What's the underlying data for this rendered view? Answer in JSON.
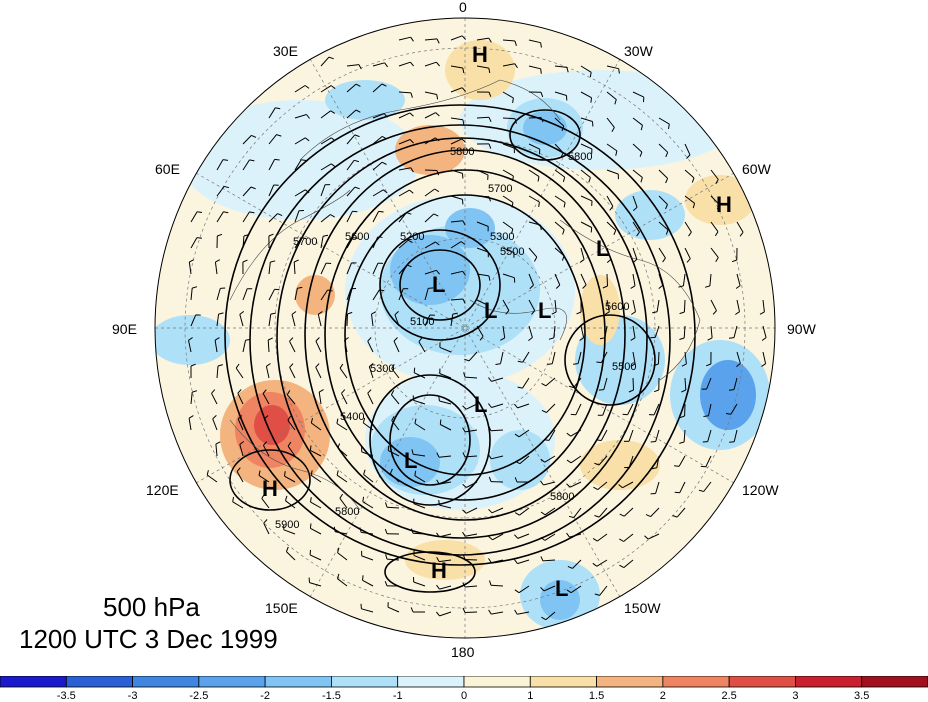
{
  "map": {
    "longitude_labels": [
      "0",
      "30W",
      "60W",
      "90W",
      "120W",
      "150W",
      "180",
      "150E",
      "120E",
      "90E",
      "60E",
      "30E"
    ],
    "pressure_centers": [
      {
        "type": "H"
      },
      {
        "type": "H"
      },
      {
        "type": "H"
      },
      {
        "type": "H"
      },
      {
        "type": "L"
      },
      {
        "type": "L"
      },
      {
        "type": "L"
      },
      {
        "type": "L"
      },
      {
        "type": "L"
      },
      {
        "type": "L"
      },
      {
        "type": "L"
      }
    ],
    "contour_labels": [
      "5200",
      "5300",
      "5300",
      "5400",
      "5500",
      "5500",
      "5600",
      "5600",
      "5700",
      "5700",
      "5800",
      "5800",
      "5800",
      "5800",
      "5900",
      "5100"
    ]
  },
  "title": {
    "level": "500 hPa",
    "time": "1200 UTC 3 Dec 1999"
  },
  "colorbar": {
    "labels": [
      "-3.5",
      "-3",
      "-2.5",
      "-2",
      "-1.5",
      "-1",
      "0",
      "1",
      "1.5",
      "2",
      "2.5",
      "3",
      "3.5"
    ],
    "colors": [
      "#1a1acc",
      "#2a5fd6",
      "#3f86e3",
      "#5aa3ec",
      "#80c4f3",
      "#aee0f8",
      "#dcf2fb",
      "#fbf3d6",
      "#f8e0a8",
      "#f4b47f",
      "#ef8462",
      "#e04f45",
      "#c8202f",
      "#a0101e"
    ]
  }
}
